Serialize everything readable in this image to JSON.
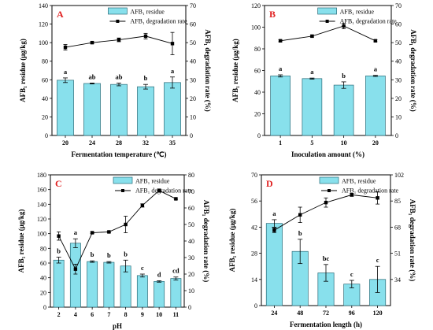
{
  "colors": {
    "bar_fill": "#88e0ec",
    "bar_stroke": "#2a6b78",
    "line": "#000000",
    "letter": "#e02020"
  },
  "chart_data": [
    {
      "panel": "A",
      "type": "bar",
      "categories": [
        "20",
        "24",
        "28",
        "32",
        "35"
      ],
      "xlabel": "Fermentation temperature (℃)",
      "ylabel": "AFB₁ residue (μg/kg)",
      "y2label": "AFB₁ degradation rate (%)",
      "ylim": [
        0,
        140
      ],
      "yticks": [
        0,
        20,
        40,
        60,
        80,
        100,
        120,
        140
      ],
      "y2lim": [
        0,
        70
      ],
      "y2ticks": [
        0,
        10,
        20,
        30,
        40,
        50,
        60,
        70
      ],
      "series": [
        {
          "name": "AFB₁ residue",
          "type": "bar",
          "axis": "left",
          "values": [
            59.5,
            56,
            55,
            52.5,
            57
          ],
          "errors": [
            2.5,
            0.5,
            1.5,
            2.5,
            6
          ],
          "labels": [
            "a",
            "ab",
            "ab",
            "b",
            "a"
          ]
        },
        {
          "name": "AFB₁ degradation rate",
          "type": "line",
          "axis": "right",
          "values": [
            47.5,
            50,
            51.5,
            53.5,
            49.5
          ],
          "errors": [
            1.5,
            0.5,
            1,
            1.5,
            6
          ]
        }
      ],
      "legend": "top-center"
    },
    {
      "panel": "B",
      "type": "bar",
      "categories": [
        "1",
        "5",
        "10",
        "20"
      ],
      "xlabel": "Inoculation amount (%)",
      "ylabel": "AFB₁ residue (μg/kg)",
      "y2label": "AFB₁ degradation rate (%)",
      "ylim": [
        0,
        120
      ],
      "yticks": [
        0,
        20,
        40,
        60,
        80,
        100,
        120
      ],
      "y2lim": [
        0,
        70
      ],
      "y2ticks": [
        0,
        10,
        20,
        30,
        40,
        50,
        60,
        70
      ],
      "series": [
        {
          "name": "AFB₁ residue",
          "type": "bar",
          "axis": "left",
          "values": [
            55,
            52.5,
            46.5,
            55
          ],
          "errors": [
            1,
            0.5,
            3,
            0.5
          ],
          "labels": [
            "a",
            "a",
            "b",
            "a"
          ]
        },
        {
          "name": "AFB₁ degradation rate",
          "type": "line",
          "axis": "right",
          "values": [
            51,
            53.5,
            59,
            51
          ],
          "errors": [
            0.5,
            0.5,
            1.5,
            0.5
          ]
        }
      ],
      "legend": "top-center"
    },
    {
      "panel": "C",
      "type": "bar",
      "categories": [
        "2",
        "4",
        "6",
        "7",
        "8",
        "9",
        "10",
        "11"
      ],
      "xlabel": "pH",
      "ylabel": "AFB₁ residue (μg/kg)",
      "y2label": "AFB₁ degradation rate (%)",
      "ylim": [
        0,
        180
      ],
      "yticks": [
        0,
        20,
        40,
        60,
        80,
        100,
        120,
        140,
        160,
        180
      ],
      "y2lim": [
        0,
        80
      ],
      "y2ticks": [
        0,
        10,
        20,
        30,
        40,
        50,
        60,
        70,
        80
      ],
      "series": [
        {
          "name": "AFB₁ residue",
          "type": "bar",
          "axis": "left",
          "values": [
            64,
            87,
            62,
            61,
            56,
            43,
            35,
            39
          ],
          "errors": [
            4,
            6,
            1,
            1,
            8,
            2,
            1,
            2
          ],
          "labels": [
            "b",
            "a",
            "b",
            "b",
            "b",
            "c",
            "d",
            "cd"
          ]
        },
        {
          "name": "AFB₁ degradation rate",
          "type": "line",
          "axis": "right",
          "values": [
            43,
            23,
            45,
            45.5,
            50,
            61.5,
            70.5,
            65.5
          ],
          "errors": [
            2.5,
            3,
            0.5,
            0.5,
            5,
            1,
            1,
            0.5
          ]
        }
      ],
      "legend": "top-right"
    },
    {
      "panel": "D",
      "type": "bar",
      "categories": [
        "24",
        "48",
        "72",
        "96",
        "120"
      ],
      "xlabel": "Fermentation length (h)",
      "ylabel": "AFB₁ residue (μg/kg)",
      "y2label": "AFB₁ degradation rate (%)",
      "ylim": [
        0,
        70
      ],
      "yticks": [
        0,
        14,
        28,
        42,
        56,
        70
      ],
      "y2lim": [
        17,
        102
      ],
      "y2ticks": [
        34,
        51,
        68,
        85,
        102
      ],
      "series": [
        {
          "name": "AFB₁ residue",
          "type": "bar",
          "axis": "left",
          "values": [
            44,
            29,
            17.5,
            11.5,
            14
          ],
          "errors": [
            2,
            6.5,
            4.5,
            2,
            7
          ],
          "labels": [
            "a",
            "b",
            "bc",
            "c",
            "c"
          ]
        },
        {
          "name": "AFB₁ degradation rate",
          "type": "line",
          "axis": "right",
          "values": [
            66,
            76,
            84,
            89,
            87
          ],
          "errors": [
            1.5,
            5,
            3,
            1,
            4
          ]
        }
      ],
      "legend": "top-right"
    }
  ]
}
